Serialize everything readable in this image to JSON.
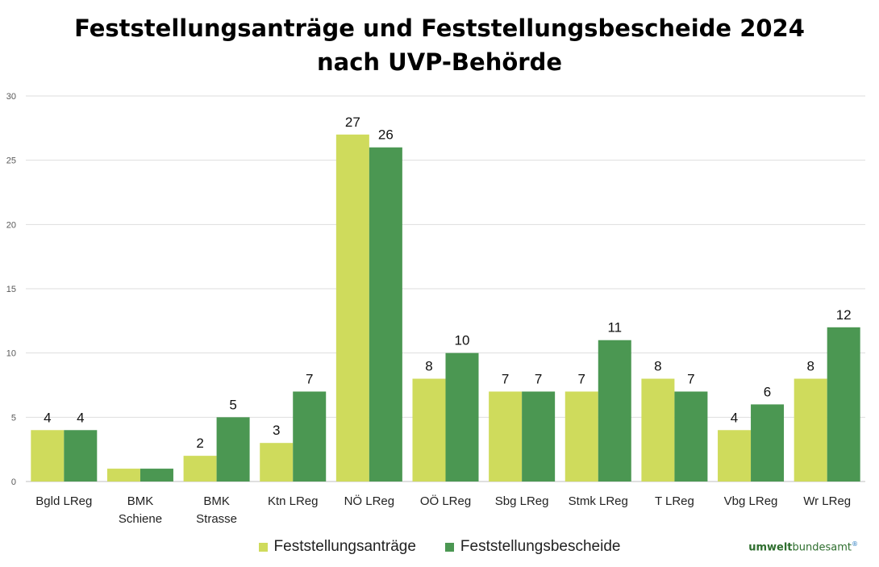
{
  "chart_data": {
    "type": "bar",
    "title": [
      "Feststellungsanträge und Feststellungsbescheide 2024",
      "nach UVP-Behörde"
    ],
    "categories": [
      [
        "Bgld LReg"
      ],
      [
        "BMK",
        "Schiene"
      ],
      [
        "BMK",
        "Strasse"
      ],
      [
        "Ktn LReg"
      ],
      [
        "NÖ LReg"
      ],
      [
        "OÖ LReg"
      ],
      [
        "Sbg LReg"
      ],
      [
        "Stmk LReg"
      ],
      [
        "T LReg"
      ],
      [
        "Vbg LReg"
      ],
      [
        "Wr LReg"
      ]
    ],
    "series": [
      {
        "name": "Feststellungsanträge",
        "color": "#cfdb5c",
        "values": [
          4,
          1,
          2,
          3,
          27,
          8,
          7,
          7,
          8,
          4,
          8
        ],
        "labels": [
          "4",
          "",
          "2",
          "3",
          "27",
          "8",
          "7",
          "7",
          "8",
          "4",
          "8"
        ]
      },
      {
        "name": "Feststellungsbescheide",
        "color": "#4b9752",
        "values": [
          4,
          1,
          5,
          7,
          26,
          10,
          7,
          11,
          7,
          6,
          12
        ],
        "labels": [
          "4",
          "",
          "5",
          "7",
          "26",
          "10",
          "7",
          "11",
          "7",
          "6",
          "12"
        ]
      }
    ],
    "ylim": [
      0,
      30
    ],
    "yticks": [
      0,
      5,
      10,
      15,
      20,
      25,
      30
    ],
    "grid": true,
    "legend": "bottom"
  },
  "logo": {
    "part1": "umwelt",
    "part2": "bundesamt",
    "mark": "®"
  }
}
